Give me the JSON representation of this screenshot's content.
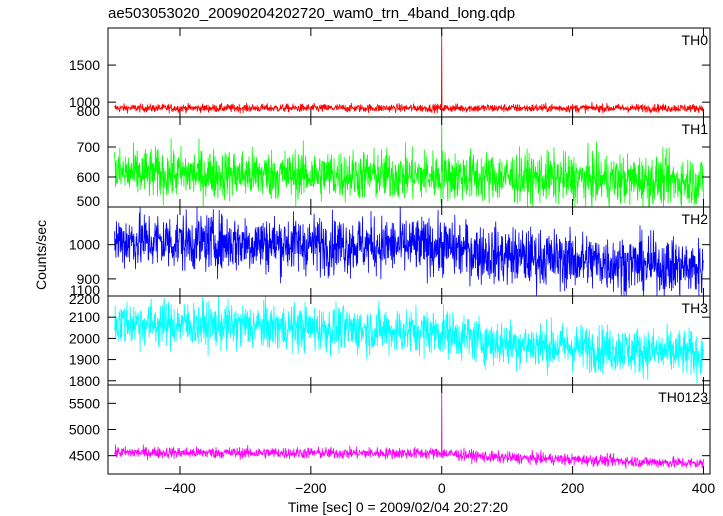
{
  "chart_data": {
    "type": "line",
    "title": "ae503053020_20090204202720_wam0_trn_4band_long.qdp",
    "xlabel": "Time [sec] 0 = 2009/02/04 20:27:20",
    "ylabel": "Counts/sec",
    "xlim": [
      -510,
      410
    ],
    "x_ticks": [
      -400,
      -200,
      0,
      200,
      400
    ],
    "x_tick_labels": [
      "−400",
      "−200",
      "0",
      "200",
      "400"
    ],
    "x_range": [
      -500,
      400
    ],
    "series": [
      {
        "name": "TH0",
        "color": "#ff0000",
        "ylim": [
          800,
          2000
        ],
        "y_ticks": [
          1000,
          1500
        ],
        "extra_tick_labels": [
          "800"
        ],
        "baseline": [
          [
            -500,
            920
          ],
          [
            400,
            920
          ]
        ],
        "noise": 28,
        "spikes": [
          [
            0,
            2000
          ]
        ]
      },
      {
        "name": "TH1",
        "color": "#00ff00",
        "ylim": [
          500,
          800
        ],
        "y_ticks": [
          600,
          700
        ],
        "extra_tick_labels": [
          "500"
        ],
        "baseline": [
          [
            -500,
            612
          ],
          [
            0,
            604
          ],
          [
            400,
            585
          ]
        ],
        "noise": 42,
        "spikes": [
          [
            0,
            800
          ]
        ]
      },
      {
        "name": "TH2",
        "color": "#0000ff",
        "ylim": [
          850,
          1110
        ],
        "y_ticks": [
          900,
          1000
        ],
        "extra_tick_labels": [
          "1100"
        ],
        "baseline": [
          [
            -500,
            1012
          ],
          [
            0,
            995
          ],
          [
            80,
            970
          ],
          [
            400,
            930
          ]
        ],
        "noise": 42,
        "spikes": []
      },
      {
        "name": "TH3",
        "color": "#00ffff",
        "ylim": [
          1780,
          2200
        ],
        "y_ticks": [
          1800,
          1900,
          2000,
          2100
        ],
        "extra_tick_labels": [
          "2200"
        ],
        "baseline": [
          [
            -500,
            2075
          ],
          [
            0,
            2030
          ],
          [
            80,
            1980
          ],
          [
            400,
            1925
          ]
        ],
        "noise": 55,
        "spikes": []
      },
      {
        "name": "TH0123",
        "color": "#ff00ff",
        "ylim": [
          4150,
          5850
        ],
        "y_ticks": [
          4500,
          5000,
          5500
        ],
        "extra_tick_labels": [],
        "baseline": [
          [
            -500,
            4560
          ],
          [
            0,
            4545
          ],
          [
            80,
            4470
          ],
          [
            400,
            4350
          ]
        ],
        "noise": 55,
        "spikes": [
          [
            0,
            5850
          ]
        ]
      }
    ]
  }
}
